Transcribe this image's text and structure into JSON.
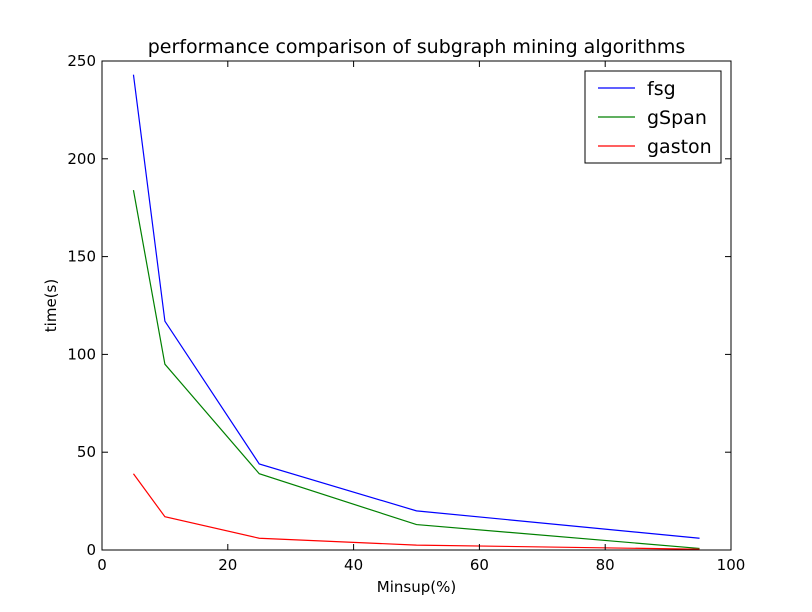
{
  "chart_data": {
    "type": "line",
    "title": "performance comparison of subgraph mining algorithms",
    "xlabel": "Minsup(%)",
    "ylabel": "time(s)",
    "xlim": [
      0,
      100
    ],
    "ylim": [
      0,
      250
    ],
    "xticks": [
      0,
      20,
      40,
      60,
      80,
      100
    ],
    "yticks": [
      0,
      50,
      100,
      150,
      200,
      250
    ],
    "x": [
      5,
      10,
      25,
      50,
      95
    ],
    "grid": false,
    "legend_position": "top-right",
    "series": [
      {
        "name": "fsg",
        "color": "#0000ff",
        "values": [
          243,
          117,
          44,
          20,
          6
        ]
      },
      {
        "name": "gSpan",
        "color": "#008000",
        "values": [
          184,
          95,
          39,
          13,
          0.8
        ]
      },
      {
        "name": "gaston",
        "color": "#ff0000",
        "values": [
          39,
          17,
          6,
          2.5,
          0.4
        ]
      }
    ]
  }
}
